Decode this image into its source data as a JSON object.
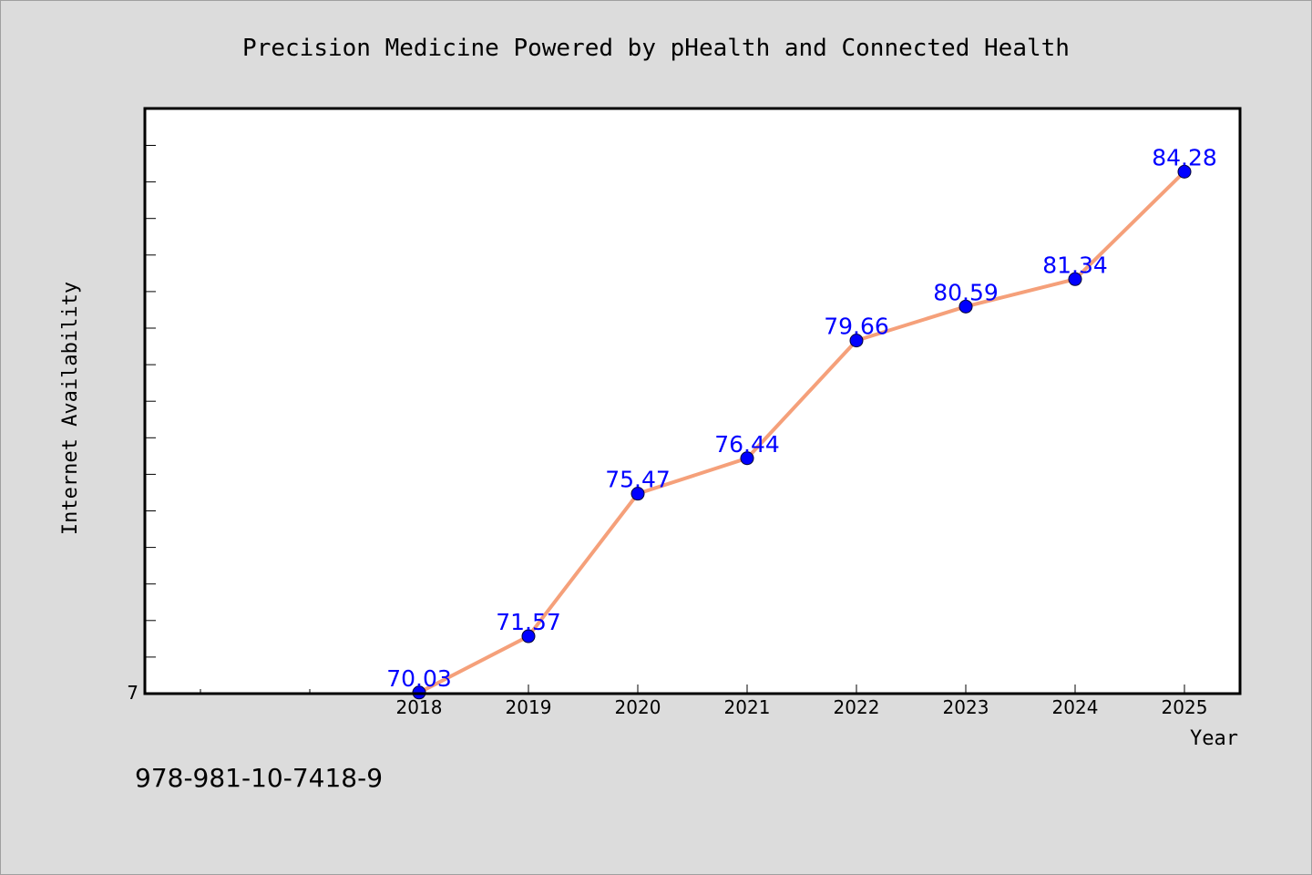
{
  "chart_data": {
    "type": "line",
    "title": "Precision Medicine Powered by pHealth and Connected Health",
    "xlabel": "Year",
    "ylabel": "Internet Availability",
    "x": [
      "2018",
      "2019",
      "2020",
      "2021",
      "2022",
      "2023",
      "2024",
      "2025"
    ],
    "values": [
      70.03,
      71.57,
      75.47,
      76.44,
      79.66,
      80.59,
      81.34,
      84.28
    ],
    "data_labels": [
      "70.03",
      "71.57",
      "75.47",
      "76.44",
      "79.66",
      "80.59",
      "81.34",
      "84.28"
    ],
    "y_tick_labels": [
      "7"
    ],
    "ylim": [
      70,
      86
    ],
    "grid": false,
    "legend": "none"
  },
  "footer": {
    "isbn": "978-981-10-7418-9"
  },
  "colors": {
    "background": "#dcdcdc",
    "plot_background": "#ffffff",
    "line": "#f5a07a",
    "marker": "#0000ff",
    "data_label": "#0000ff"
  }
}
